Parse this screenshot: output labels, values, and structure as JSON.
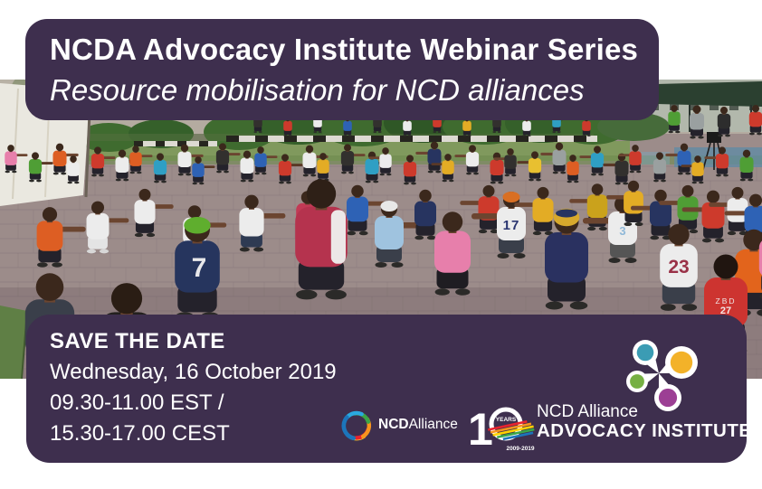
{
  "header": {
    "title": "NCDA Advocacy Institute Webinar Series",
    "subtitle": "Resource mobilisation for NCD alliances"
  },
  "photo": {
    "description": "Large group of people squatting in a circle with arms extended, exercising outdoors on a paved square with hedges, a white tent and buildings behind",
    "jerseys": {
      "n7": "7",
      "n17": "17",
      "n3": "3",
      "n23": "23",
      "zbd": "ZBD",
      "n27": "27"
    }
  },
  "footer": {
    "save_the_date": "SAVE THE DATE",
    "date": "Wednesday, 16 October 2019",
    "time_line1": "09.30-11.00 EST /",
    "time_line2": "15.30-17.00 CEST"
  },
  "logos": {
    "ncd_alliance": {
      "bold": "NCD",
      "regular": "Alliance"
    },
    "ten_years": {
      "digit": "1",
      "years": "YEARS",
      "range": "2009-2019"
    },
    "advocacy_institute": {
      "line1": "NCD Alliance",
      "line2": "ADVOCACY INSTITUTE"
    }
  },
  "colors": {
    "banner_purple": "#3e2f4e"
  }
}
